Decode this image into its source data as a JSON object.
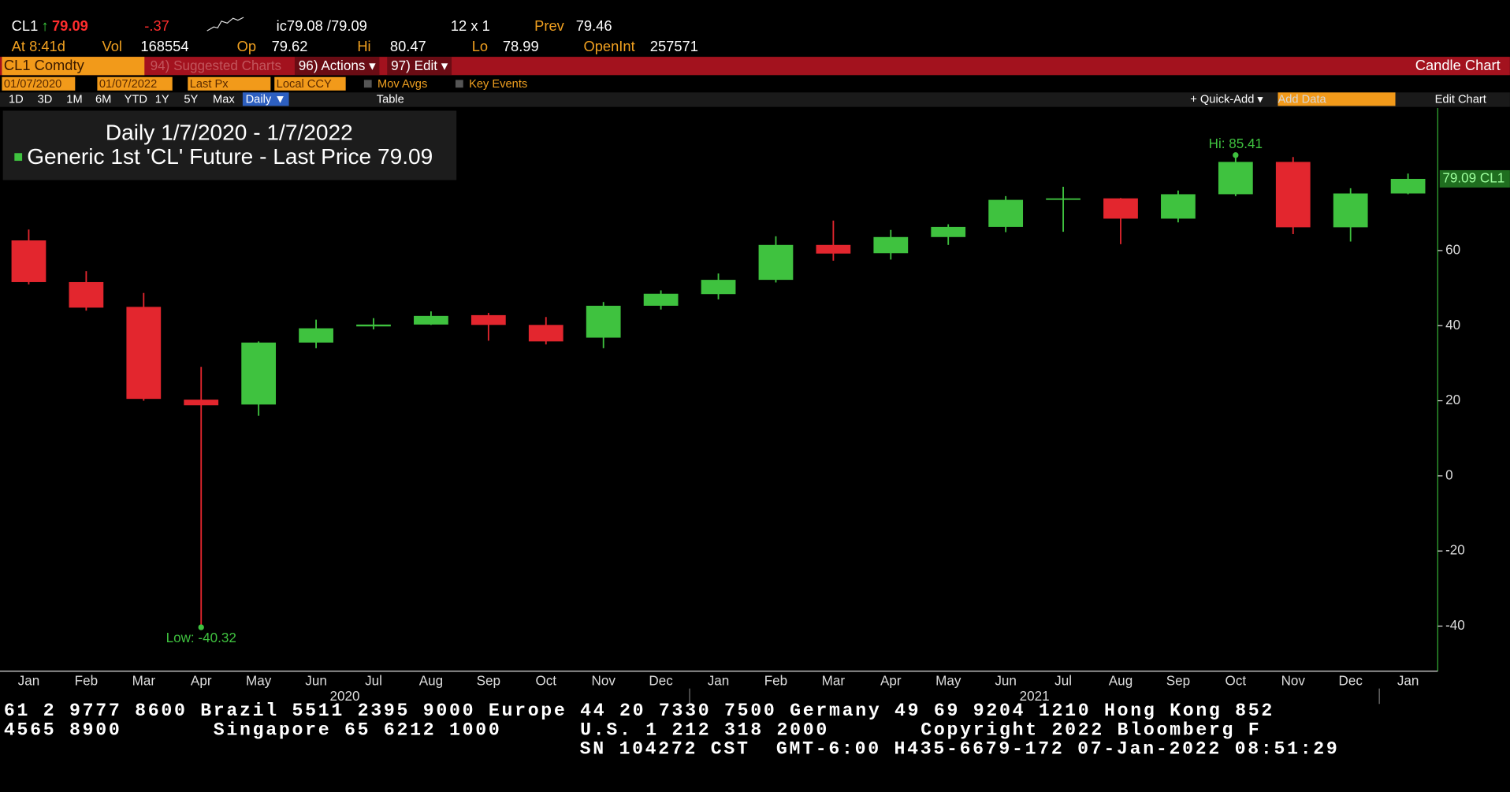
{
  "header": {
    "ticker": "CL1",
    "arrow": "↑",
    "last": "79.09",
    "change": "-.37",
    "bid_ask": "ic79.08 /79.09",
    "size": "12 x 1",
    "prev_label": "Prev",
    "prev": "79.46",
    "time": "At 8:41d",
    "vol_label": "Vol",
    "vol": "168554",
    "op_label": "Op",
    "op": "79.62",
    "hi_label": "Hi",
    "hi": "80.47",
    "lo_label": "Lo",
    "lo": "78.99",
    "oi_label": "OpenInt",
    "oi": "257571"
  },
  "menu": {
    "security": "CL1 Comdty",
    "suggested": "94) Suggested Charts",
    "actions": "96) Actions ▾",
    "edit": "97) Edit ▾",
    "chart_kind": "Candle Chart"
  },
  "toolbar": {
    "start": "01/07/2020",
    "end": "01/07/2022",
    "field": "Last Px",
    "currency": "Local CCY",
    "mov_avgs": "Mov Avgs",
    "key_events": "Key Events",
    "periods": [
      "1D",
      "3D",
      "1M",
      "6M",
      "YTD",
      "1Y",
      "5Y",
      "Max"
    ],
    "frequency": "Daily ▼",
    "table": "Table",
    "quick_add": "+ Quick-Add ▾",
    "add_data": "Add Data",
    "edit_chart": "Edit Chart"
  },
  "chart_data": {
    "type": "candlestick",
    "title": "Daily 1/7/2020 - 1/7/2022",
    "subtitle": "Generic 1st 'CL' Future - Last Price 79.09",
    "categories": [
      "Jan",
      "Feb",
      "Mar",
      "Apr",
      "May",
      "Jun",
      "Jul",
      "Aug",
      "Sep",
      "Oct",
      "Nov",
      "Dec",
      "Jan",
      "Feb",
      "Mar",
      "Apr",
      "May",
      "Jun",
      "Jul",
      "Aug",
      "Sep",
      "Oct",
      "Nov",
      "Dec",
      "Jan"
    ],
    "year_labels": [
      "2020",
      "2021"
    ],
    "series": [
      {
        "name": "CL1",
        "open": [
          62.7,
          51.6,
          45,
          20.3,
          19,
          35.5,
          39.8,
          40.3,
          42.8,
          40.2,
          36.8,
          45.3,
          48.4,
          52.2,
          61.5,
          59.3,
          63.6,
          66.3,
          73.5,
          73.9,
          68.5,
          75,
          83.6,
          66.2,
          75.2
        ],
        "high": [
          65.6,
          54.5,
          48.7,
          29,
          35.8,
          41.6,
          42,
          43.8,
          43.4,
          42.3,
          46.3,
          49.4,
          53.9,
          63.8,
          67.98,
          65.5,
          67,
          74.5,
          76.98,
          74,
          76,
          85.41,
          84.9,
          76.6,
          80.5
        ],
        "low": [
          51,
          44,
          20,
          -40.32,
          16,
          34,
          39,
          40.2,
          36,
          35,
          34,
          44.3,
          47,
          51.5,
          57.3,
          57.6,
          61.5,
          64.9,
          65,
          61.7,
          67.5,
          74.5,
          64.4,
          62.4,
          75
        ],
        "close": [
          51.6,
          44.8,
          20.5,
          18.8,
          35.5,
          39.3,
          40.3,
          42.6,
          40.2,
          35.8,
          45.3,
          48.5,
          52.2,
          61.5,
          59.2,
          63.6,
          66.3,
          73.5,
          73.9,
          68.5,
          75,
          83.6,
          66.2,
          75.2,
          79.09
        ]
      }
    ],
    "up_color": "#3fc23f",
    "down_color": "#e3262e",
    "axis_color": "#35b035",
    "high_label": "Hi: 85.41",
    "low_label": "Low: -40.32",
    "last_label": "79.09 CL1",
    "ylim": [
      -52,
      98
    ],
    "yticks": [
      -40,
      -20,
      0,
      20,
      40,
      60
    ]
  },
  "footer": [
    "61 2 9777 8600 Brazil 5511 2395 9000 Europe 44 20 7330 7500 Germany 49 69 9204 1210 Hong Kong 852",
    "4565 8900       Singapore 65 6212 1000      U.S. 1 212 318 2000       Copyright 2022 Bloomberg F",
    "SN 104272 CST  GMT-6:00 H435-6679-172 07-Jan-2022 08:51:29"
  ]
}
